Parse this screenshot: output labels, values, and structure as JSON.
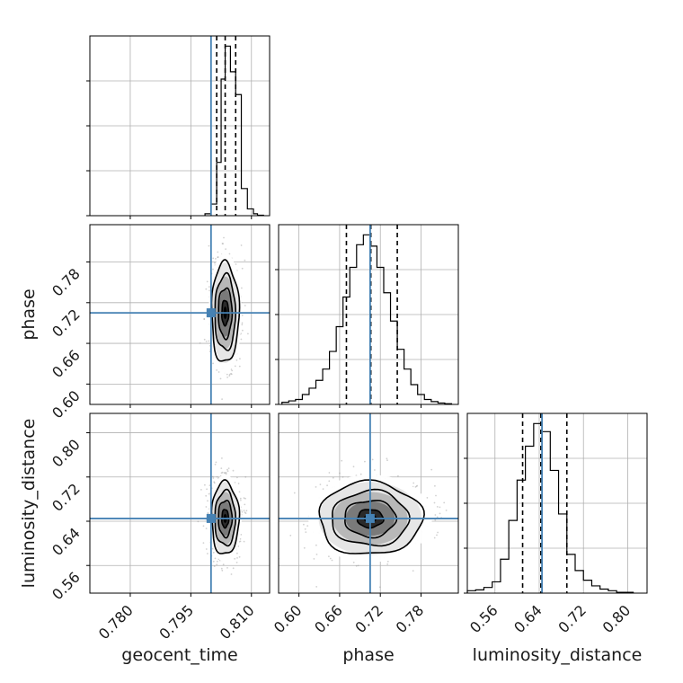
{
  "chart_data": {
    "type": "corner",
    "parameters": [
      {
        "name": "geocent_time",
        "label": "geocent_time",
        "range": [
          0.77,
          0.8145
        ],
        "ticks": [
          "0.780",
          "0.795",
          "0.810"
        ],
        "truth": 0.8,
        "quantiles": [
          0.8014,
          0.8035,
          0.8061
        ]
      },
      {
        "name": "phase",
        "label": "phase",
        "range": [
          0.57,
          0.835
        ],
        "ticks": [
          "0.60",
          "0.66",
          "0.72",
          "0.78"
        ],
        "truth": 0.705,
        "quantiles": [
          0.67,
          0.706,
          0.745
        ]
      },
      {
        "name": "luminosity_distance",
        "label": "luminosity_distance",
        "range": [
          0.51,
          0.835
        ],
        "ticks": [
          "0.56",
          "0.64",
          "0.72",
          "0.80"
        ],
        "truth": 0.645,
        "quantiles": [
          0.61,
          0.643,
          0.69
        ]
      }
    ],
    "histograms": {
      "geocent_time": {
        "edges": [
          0.7985,
          0.8,
          0.8014,
          0.8025,
          0.8035,
          0.8048,
          0.8061,
          0.8075,
          0.809,
          0.8105,
          0.8115,
          0.813
        ],
        "counts": [
          4,
          24,
          110,
          282,
          350,
          297,
          250,
          56,
          14,
          4,
          1
        ]
      },
      "phase": {
        "edges": [
          0.575,
          0.585,
          0.595,
          0.605,
          0.615,
          0.625,
          0.635,
          0.645,
          0.655,
          0.665,
          0.675,
          0.685,
          0.695,
          0.705,
          0.715,
          0.725,
          0.735,
          0.745,
          0.755,
          0.765,
          0.775,
          0.785,
          0.795,
          0.805,
          0.815,
          0.825
        ],
        "counts": [
          3,
          5,
          7,
          14,
          23,
          34,
          50,
          75,
          110,
          152,
          194,
          226,
          240,
          224,
          194,
          158,
          118,
          78,
          50,
          28,
          14,
          7,
          4,
          2,
          1
        ]
      },
      "luminosity_distance": {
        "edges": [
          0.51,
          0.525,
          0.54,
          0.555,
          0.57,
          0.585,
          0.6,
          0.615,
          0.63,
          0.645,
          0.66,
          0.675,
          0.69,
          0.705,
          0.72,
          0.735,
          0.75,
          0.765,
          0.78,
          0.795,
          0.81
        ],
        "counts": [
          3,
          4,
          7,
          14,
          42,
          90,
          140,
          182,
          210,
          200,
          152,
          98,
          48,
          28,
          16,
          9,
          5,
          3,
          1,
          1
        ]
      }
    },
    "pairs": [
      {
        "x": "geocent_time",
        "y": "phase",
        "x_center": 0.8035,
        "y_center": 0.705,
        "x_sd": 0.0017,
        "y_sd": 0.037,
        "truth": [
          0.8,
          0.705
        ]
      },
      {
        "x": "geocent_time",
        "y": "luminosity_distance",
        "x_center": 0.8035,
        "y_center": 0.645,
        "x_sd": 0.0017,
        "y_sd": 0.033,
        "truth": [
          0.8,
          0.645
        ]
      },
      {
        "x": "phase",
        "y": "luminosity_distance",
        "x_center": 0.705,
        "y_center": 0.645,
        "x_sd": 0.038,
        "y_sd": 0.033,
        "truth": [
          0.705,
          0.645
        ]
      }
    ],
    "truth_color": "#4682b4",
    "hist_color": "#000000",
    "grid": true
  }
}
